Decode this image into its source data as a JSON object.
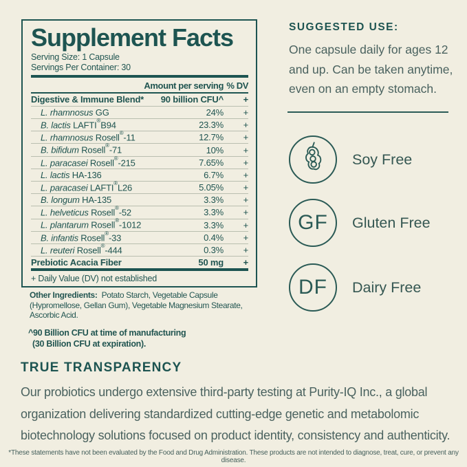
{
  "colors": {
    "background": "#f1eee1",
    "teal": "#1d5451",
    "body_text": "#4a625f",
    "separator": "#b9beaf"
  },
  "facts": {
    "title": "Supplement Facts",
    "serving_size": "Serving Size: 1 Capsule",
    "servings_per_container": "Servings Per Container: 30",
    "col_amount": "Amount per serving",
    "col_dv": "% DV",
    "rows": [
      {
        "name": "Digestive & Immune Blend*",
        "amount": "90 billion CFU^",
        "dv": "+",
        "bold": true
      },
      {
        "italic": "L. rhamnosus",
        "rest": " GG",
        "amount": "24%",
        "dv": "+",
        "indent": true
      },
      {
        "italic": "B. lactis",
        "rest": " LAFTI®B94",
        "amount": "23.3%",
        "dv": "+",
        "indent": true
      },
      {
        "italic": "L. rhamnosus",
        "rest": " Rosell®-11",
        "amount": "12.7%",
        "dv": "+",
        "indent": true
      },
      {
        "italic": "B. bifidum",
        "rest": " Rosell®-71",
        "amount": "10%",
        "dv": "+",
        "indent": true
      },
      {
        "italic": "L. paracasei",
        "rest": " Rosell®-215",
        "amount": "7.65%",
        "dv": "+",
        "indent": true
      },
      {
        "italic": "L. lactis",
        "rest": " HA-136",
        "amount": "6.7%",
        "dv": "+",
        "indent": true
      },
      {
        "italic": "L. paracasei",
        "rest": " LAFTI®L26",
        "amount": "5.05%",
        "dv": "+",
        "indent": true
      },
      {
        "italic": "B. longum",
        "rest": " HA-135",
        "amount": "3.3%",
        "dv": "+",
        "indent": true
      },
      {
        "italic": "L. helveticus",
        "rest": " Rosell®-52",
        "amount": "3.3%",
        "dv": "+",
        "indent": true
      },
      {
        "italic": "L. plantarum",
        "rest": " Rosell®-1012",
        "amount": "3.3%",
        "dv": "+",
        "indent": true
      },
      {
        "italic": "B. infantis",
        "rest": " Rosell®-33",
        "amount": "0.4%",
        "dv": "+",
        "indent": true
      },
      {
        "italic": "L. reuteri",
        "rest": " Rosell®-444",
        "amount": "0.3%",
        "dv": "+",
        "indent": true
      },
      {
        "name": "Prebiotic Acacia Fiber",
        "amount": "50 mg",
        "dv": "+",
        "bold": true
      }
    ],
    "footnote_dv": "+ Daily Value (DV) not established",
    "other_ingredients_label": "Other Ingredients:",
    "other_ingredients_text": "Potato Starch, Vegetable Capsule (Hypromellose, Gellan Gum), Vegetable Magnesium Stearate, Ascorbic Acid.",
    "cfu_note_line1": "^90 Billion CFU at time of manufacturing",
    "cfu_note_line2": "(30 Billion CFU at expiration)."
  },
  "suggested_use": {
    "heading": "SUGGESTED USE:",
    "lines": [
      "One capsule daily for ages 12",
      "and up. Can be taken anytime,",
      "even on an empty stomach."
    ]
  },
  "badges": [
    {
      "icon": "soybean-icon",
      "abbr": "",
      "label": "Soy Free"
    },
    {
      "icon": "gluten-free-monogram",
      "abbr": "GF",
      "label": "Gluten Free"
    },
    {
      "icon": "dairy-free-monogram",
      "abbr": "DF",
      "label": "Dairy Free"
    }
  ],
  "transparency": {
    "heading": "TRUE TRANSPARENCY",
    "lines": [
      "Our probiotics undergo extensive third-party testing at Purity-IQ Inc., a global",
      "organization delivering standardized cutting-edge genetic and metabolomic",
      "biotechnology solutions focused on product identity, consistency and authenticity."
    ]
  },
  "disclaimer": "*These statements have not been evaluated by the Food and Drug Administration. These products are not intended to diagnose, treat, cure, or prevent any disease."
}
